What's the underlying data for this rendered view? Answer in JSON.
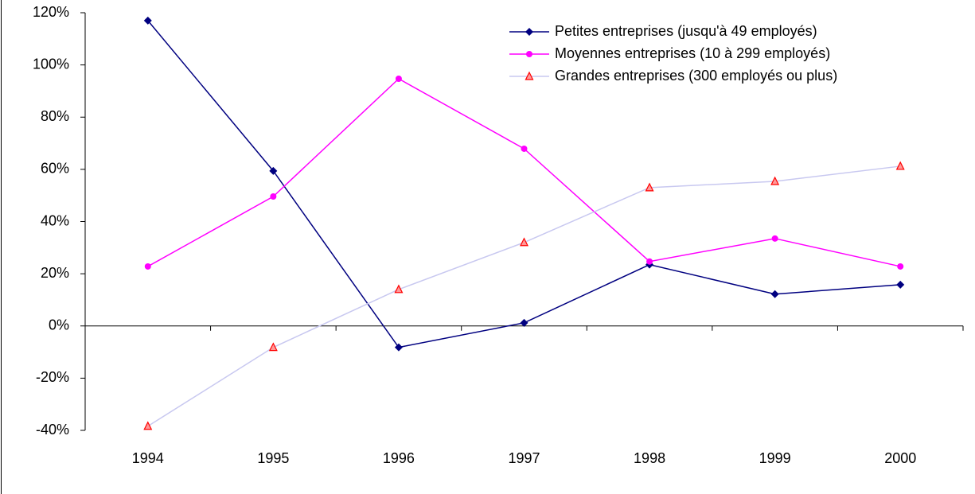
{
  "chart_data": {
    "type": "line",
    "categories": [
      "1994",
      "1995",
      "1996",
      "1997",
      "1998",
      "1999",
      "2000"
    ],
    "series": [
      {
        "name": "Petites entreprises (jusqu'à 49 employés)",
        "color": "#000080",
        "marker": "diamond",
        "marker_color": "#000080",
        "values": [
          117,
          59.4,
          -8.2,
          1.2,
          23.5,
          12.2,
          15.8
        ]
      },
      {
        "name": "Moyennes entreprises (10 à 299 employés)",
        "color": "#ff00ff",
        "marker": "circle",
        "marker_color": "#ff00ff",
        "values": [
          22.8,
          49.6,
          94.7,
          67.9,
          24.7,
          33.5,
          22.8
        ]
      },
      {
        "name": "Grandes entreprises (300 employés ou plus)",
        "color": "#c8c8f0",
        "marker": "triangle",
        "marker_color": "#ff0000",
        "values": [
          -38.4,
          -8.2,
          14,
          32,
          53,
          55.4,
          61.2
        ]
      }
    ],
    "ylim": [
      -40,
      120
    ],
    "yticks": [
      {
        "value": -40,
        "label": "-40%"
      },
      {
        "value": -20,
        "label": "-20%"
      },
      {
        "value": 0,
        "label": "0%"
      },
      {
        "value": 20,
        "label": "20%"
      },
      {
        "value": 40,
        "label": "40%"
      },
      {
        "value": 60,
        "label": "60%"
      },
      {
        "value": 80,
        "label": "80%"
      },
      {
        "value": 100,
        "label": "100%"
      },
      {
        "value": 120,
        "label": "120%"
      }
    ],
    "grid": false,
    "legend": "upper right"
  }
}
